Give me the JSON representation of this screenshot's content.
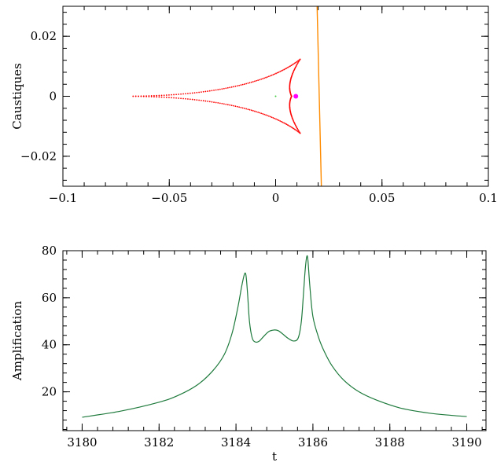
{
  "chart_data": [
    {
      "type": "scatter",
      "ylabel": "Caustiques",
      "xlim": [
        -0.1,
        0.1
      ],
      "ylim": [
        -0.03,
        0.03
      ],
      "xticks": [
        -0.1,
        -0.05,
        0,
        0.05,
        0.1
      ],
      "xtick_labels": [
        "−0.1",
        "−0.05",
        "0",
        "0.05",
        "0.1"
      ],
      "yticks": [
        -0.02,
        0,
        0.02
      ],
      "ytick_labels": [
        "−0.02",
        "0",
        "0.02"
      ],
      "caustic": {
        "color": "#ff0000",
        "cusp_left": [
          -0.067,
          0.0
        ],
        "cusp_top": [
          0.0115,
          0.0123
        ],
        "cusp_bottom": [
          0.0115,
          -0.0123
        ],
        "inner_cusp": [
          0.0075,
          0.0
        ]
      },
      "source": {
        "color": "#ff00ff",
        "x": 0.0095,
        "y": 0.0
      },
      "lens_center": {
        "color": "#44cc44",
        "x": 0.0,
        "y": 0.0
      },
      "trajectory": {
        "color": "#ff8c00",
        "points": [
          [
            0.0195,
            0.03
          ],
          [
            0.0215,
            -0.03
          ]
        ]
      }
    },
    {
      "type": "line",
      "xlabel": "t",
      "ylabel": "Amplification",
      "xlim": [
        3179.5,
        3190.5
      ],
      "ylim": [
        3.5,
        80
      ],
      "xticks": [
        3180,
        3182,
        3184,
        3186,
        3188,
        3190
      ],
      "xtick_labels": [
        "3180",
        "3182",
        "3184",
        "3186",
        "3188",
        "3190"
      ],
      "yticks": [
        20,
        40,
        60,
        80
      ],
      "ytick_labels": [
        "20",
        "40",
        "60",
        "80"
      ],
      "series": [
        {
          "color": "#1e7a3c",
          "x": [
            3180,
            3181,
            3182,
            3182.5,
            3183,
            3183.4,
            3183.7,
            3183.9,
            3184.05,
            3184.15,
            3184.22,
            3184.26,
            3184.3,
            3184.35,
            3184.42,
            3184.5,
            3184.6,
            3184.7,
            3184.85,
            3185.0,
            3185.1,
            3185.2,
            3185.35,
            3185.5,
            3185.62,
            3185.7,
            3185.76,
            3185.8,
            3185.84,
            3185.87,
            3185.92,
            3186.0,
            3186.15,
            3186.3,
            3186.5,
            3186.8,
            3187.2,
            3187.7,
            3188.3,
            3189,
            3189.6,
            3190
          ],
          "y": [
            9.2,
            11.8,
            15.6,
            18.5,
            23,
            29,
            36,
            45,
            56,
            65,
            70,
            69.5,
            62,
            50,
            43,
            41.2,
            41.5,
            43.2,
            45.6,
            46.3,
            46,
            44.8,
            42.8,
            41.6,
            43,
            50,
            63,
            72,
            77.5,
            76,
            65,
            52,
            43,
            37,
            31,
            25,
            20,
            16.2,
            13,
            11,
            10,
            9.5
          ]
        }
      ]
    }
  ]
}
